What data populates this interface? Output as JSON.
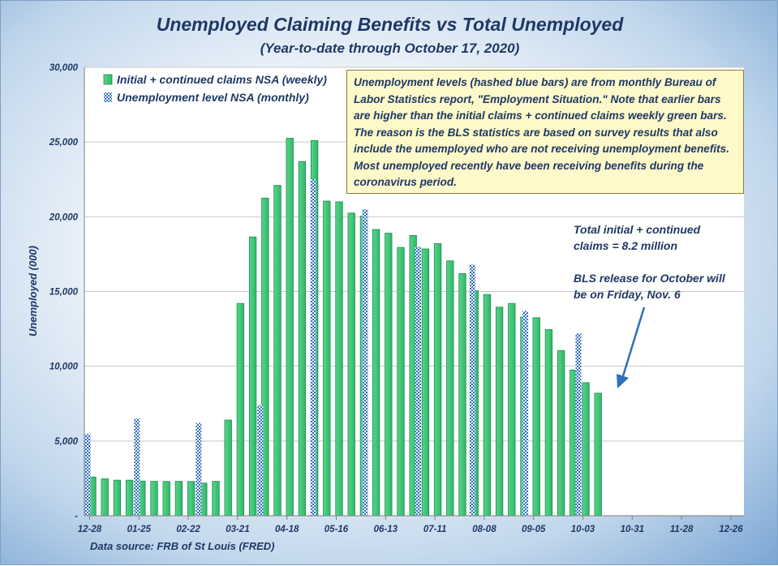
{
  "chart_data": {
    "type": "bar",
    "title": "Unemployed Claiming Benefits vs Total Unemployed",
    "subtitle": "(Year-to-date through October 17, 2020)",
    "ylabel": "Unemployed (000)",
    "xlabel": "",
    "ylim": [
      0,
      30000
    ],
    "y_ticks": [
      "-",
      "5,000",
      "10,000",
      "15,000",
      "20,000",
      "25,000",
      "30,000"
    ],
    "x_ticks": [
      "12-28",
      "01-25",
      "02-22",
      "03-21",
      "04-18",
      "05-16",
      "06-13",
      "07-11",
      "08-08",
      "09-05",
      "10-03",
      "10-31",
      "11-28",
      "12-26"
    ],
    "grid": true,
    "legend": "top-left",
    "series": [
      {
        "name": "Initial + continued claims NSA (weekly)",
        "color": "#3cc67a",
        "values": [
          2590,
          2470,
          2380,
          2380,
          2320,
          2300,
          2290,
          2300,
          2290,
          2180,
          2300,
          6400,
          14200,
          18650,
          21250,
          22100,
          25250,
          23700,
          25100,
          21050,
          21000,
          20250,
          20050,
          19150,
          18900,
          17950,
          18750,
          17850,
          18200,
          17050,
          16200,
          15050,
          14800,
          13950,
          14200,
          13300,
          13250,
          12450,
          11050,
          9750,
          8900,
          8200
        ]
      },
      {
        "name": "Unemployment level NSA (monthly)",
        "color": "#2e6fbe",
        "months": [
          {
            "week_index": 0,
            "value": 5460
          },
          {
            "week_index": 4,
            "value": 6500
          },
          {
            "week_index": 9,
            "value": 6200
          },
          {
            "week_index": 14,
            "value": 7400
          },
          {
            "week_index": 18.3,
            "value": 22500
          },
          {
            "week_index": 22.5,
            "value": 20500
          },
          {
            "week_index": 26.8,
            "value": 18000
          },
          {
            "week_index": 31.2,
            "value": 16800
          },
          {
            "week_index": 35.5,
            "value": 13700
          },
          {
            "week_index": 39.8,
            "value": 12200
          }
        ]
      }
    ]
  },
  "note": "Unemployment levels (hashed blue bars) are from monthly Bureau of Labor Statistics report, \"Employment Situation.\" Note that earlier bars are higher than the initial claims + continued claims weekly green bars. The reason is the BLS statistics are based on survey results that also include the umemployed who are not receiving unemployment benefits. Most unemployed recently have been receiving benefits during the coronavirus period.",
  "annotation_line1": "Total initial + continued claims = 8.2 million",
  "annotation_line2": "BLS release for October will be on Friday, Nov. 6",
  "source": "Data source: FRB of St Louis (FRED)"
}
